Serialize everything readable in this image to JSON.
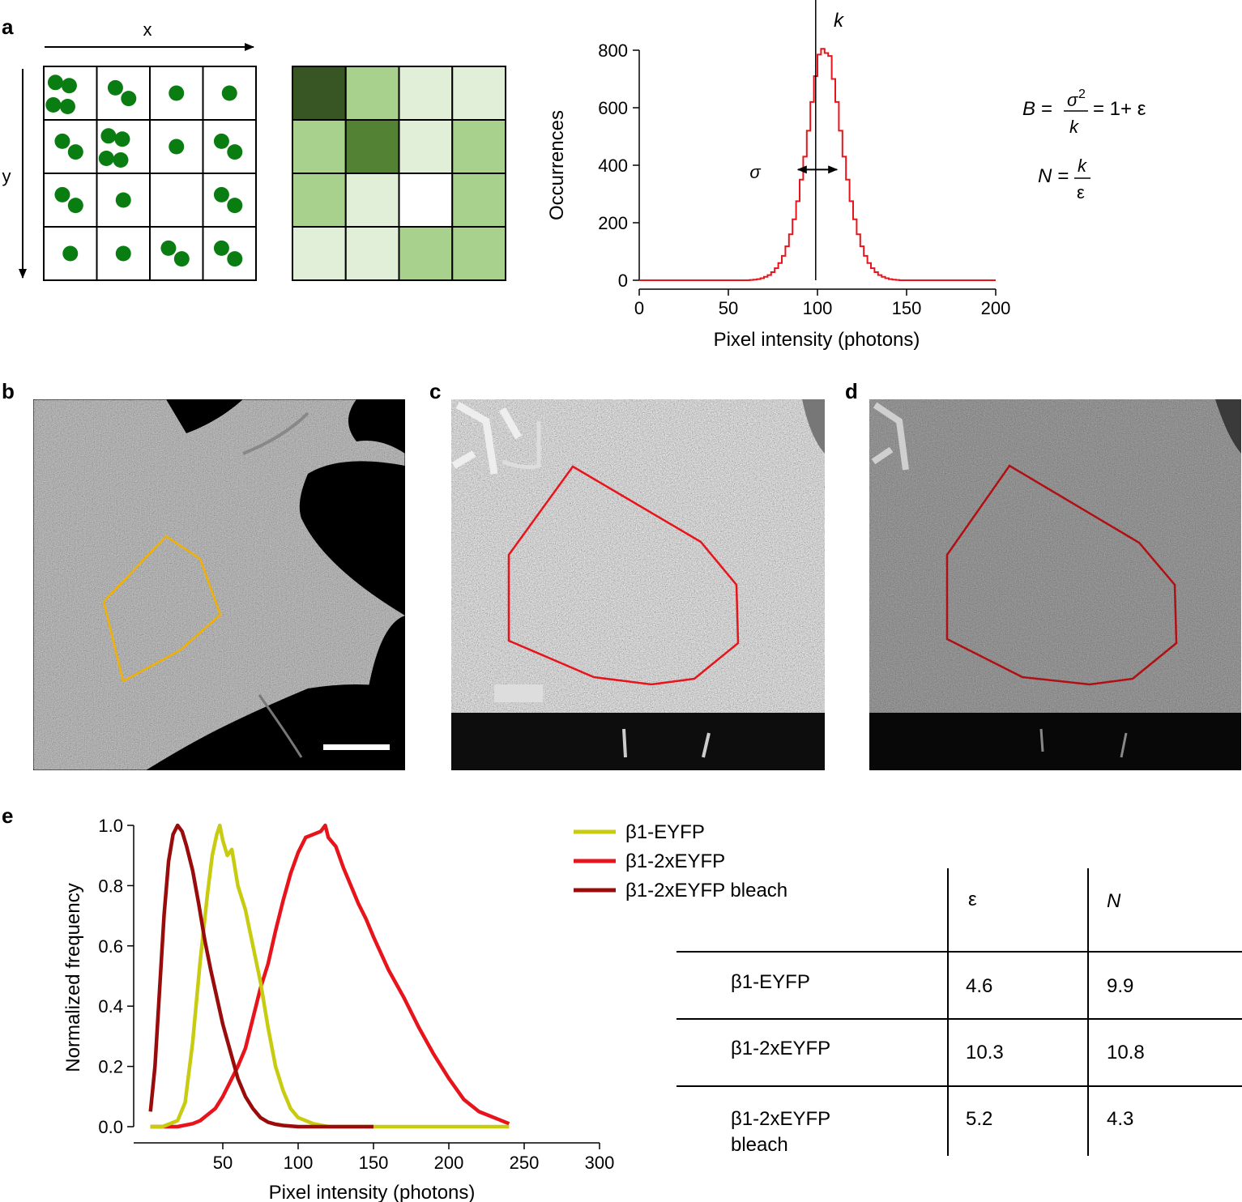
{
  "panel_labels": {
    "a": "a",
    "b": "b",
    "c": "c",
    "d": "d",
    "e": "e"
  },
  "schematic": {
    "x_label": "x",
    "y_label": "y",
    "grid_size": 4,
    "dots_per_cell": [
      [
        4,
        2,
        1,
        1
      ],
      [
        2,
        4,
        1,
        2
      ],
      [
        2,
        1,
        0,
        2
      ],
      [
        1,
        1,
        2,
        2
      ]
    ],
    "dot_color": "#0a7d12",
    "shade_colors": [
      "#ffffff",
      "#e1efd9",
      "#a9d18e",
      "#548235",
      "#375623"
    ]
  },
  "histogram_a": {
    "ylabel": "Occurrences",
    "xlabel": "Pixel intensity (photons)",
    "k_label": "k",
    "sigma_label": "σ",
    "xticks": [
      "0",
      "50",
      "100",
      "150",
      "200"
    ],
    "yticks": [
      "0",
      "200",
      "400",
      "600",
      "800"
    ],
    "xlim": [
      0,
      200
    ],
    "ylim": [
      0,
      800
    ],
    "mean_k": 99,
    "sigma_arrow": [
      89,
      111
    ],
    "line_color": "#e8141b",
    "bins": [
      [
        60,
        0
      ],
      [
        62,
        1
      ],
      [
        64,
        2
      ],
      [
        66,
        4
      ],
      [
        68,
        7
      ],
      [
        70,
        12
      ],
      [
        72,
        18
      ],
      [
        74,
        28
      ],
      [
        76,
        42
      ],
      [
        78,
        60
      ],
      [
        80,
        85
      ],
      [
        82,
        118
      ],
      [
        84,
        160
      ],
      [
        86,
        212
      ],
      [
        88,
        275
      ],
      [
        90,
        350
      ],
      [
        92,
        430
      ],
      [
        94,
        520
      ],
      [
        96,
        620
      ],
      [
        98,
        710
      ],
      [
        100,
        785
      ],
      [
        102,
        805
      ],
      [
        104,
        790
      ],
      [
        106,
        780
      ],
      [
        108,
        700
      ],
      [
        110,
        620
      ],
      [
        112,
        520
      ],
      [
        114,
        430
      ],
      [
        116,
        350
      ],
      [
        118,
        275
      ],
      [
        120,
        212
      ],
      [
        122,
        160
      ],
      [
        124,
        118
      ],
      [
        126,
        85
      ],
      [
        128,
        60
      ],
      [
        130,
        42
      ],
      [
        132,
        28
      ],
      [
        134,
        18
      ],
      [
        136,
        12
      ],
      [
        138,
        7
      ],
      [
        140,
        4
      ],
      [
        142,
        2
      ],
      [
        144,
        1
      ],
      [
        146,
        0
      ]
    ]
  },
  "equations": {
    "b_lhs": "B =",
    "b_num": "σ",
    "b_num_sup": "2",
    "b_den": "k",
    "b_rhs": "= 1+ ε",
    "n_lhs": "N =",
    "n_num": "k",
    "n_den": "ε"
  },
  "micrographs": {
    "roi_colors": {
      "b": "#f2b000",
      "c": "#e8141b",
      "d": "#b01014"
    }
  },
  "chart_data": {
    "type": "line",
    "xlabel": "Pixel intensity (photons)",
    "ylabel": "Normalized frequency",
    "xticks": [
      "50",
      "100",
      "150",
      "200",
      "250",
      "300"
    ],
    "yticks": [
      "0.0",
      "0.2",
      "0.4",
      "0.6",
      "0.8",
      "1.0"
    ],
    "xlim": [
      0,
      300
    ],
    "ylim": [
      0,
      1
    ],
    "legend_position": "top-right",
    "series": [
      {
        "name": "β1-EYFP",
        "color": "#c8cc10",
        "x": [
          2,
          10,
          20,
          25,
          30,
          35,
          40,
          43,
          46,
          48,
          50,
          53,
          56,
          60,
          65,
          70,
          75,
          80,
          85,
          90,
          95,
          100,
          110,
          120,
          130,
          150,
          200,
          240
        ],
        "y": [
          0,
          0,
          0.02,
          0.08,
          0.28,
          0.55,
          0.78,
          0.9,
          0.97,
          1.0,
          0.95,
          0.9,
          0.92,
          0.8,
          0.72,
          0.6,
          0.48,
          0.33,
          0.2,
          0.12,
          0.06,
          0.03,
          0.01,
          0,
          0,
          0,
          0,
          0
        ]
      },
      {
        "name": "β1-2xEYFP",
        "color": "#e8141b",
        "x": [
          2,
          20,
          30,
          35,
          40,
          45,
          50,
          55,
          60,
          65,
          70,
          75,
          80,
          85,
          90,
          95,
          100,
          105,
          110,
          115,
          118,
          120,
          125,
          130,
          135,
          140,
          145,
          150,
          160,
          170,
          180,
          190,
          200,
          210,
          220,
          230,
          240
        ],
        "y": [
          0,
          0,
          0.01,
          0.02,
          0.04,
          0.06,
          0.1,
          0.15,
          0.2,
          0.26,
          0.36,
          0.46,
          0.54,
          0.65,
          0.75,
          0.84,
          0.91,
          0.96,
          0.97,
          0.98,
          1.0,
          0.96,
          0.93,
          0.86,
          0.8,
          0.74,
          0.69,
          0.63,
          0.52,
          0.43,
          0.33,
          0.24,
          0.16,
          0.09,
          0.05,
          0.03,
          0.01
        ]
      },
      {
        "name": "β1-2xEYFP bleach",
        "color": "#9a0c0c",
        "x": [
          2,
          5,
          8,
          11,
          14,
          17,
          20,
          23,
          26,
          30,
          34,
          38,
          42,
          46,
          50,
          55,
          60,
          65,
          70,
          75,
          80,
          85,
          90,
          100,
          120,
          150
        ],
        "y": [
          0.05,
          0.2,
          0.45,
          0.7,
          0.88,
          0.97,
          1.0,
          0.98,
          0.93,
          0.85,
          0.74,
          0.62,
          0.52,
          0.43,
          0.34,
          0.25,
          0.16,
          0.1,
          0.06,
          0.03,
          0.015,
          0.008,
          0.004,
          0,
          0,
          0
        ]
      }
    ]
  },
  "table": {
    "headers": [
      "",
      "ε",
      "N"
    ],
    "rows": [
      [
        "β1-EYFP",
        "4.6",
        "9.9"
      ],
      [
        "β1-2xEYFP",
        "10.3",
        "10.8"
      ],
      [
        "β1-2xEYFP bleach",
        "5.2",
        "4.3"
      ]
    ],
    "row3_line1": "β1-2xEYFP",
    "row3_line2": "bleach"
  }
}
